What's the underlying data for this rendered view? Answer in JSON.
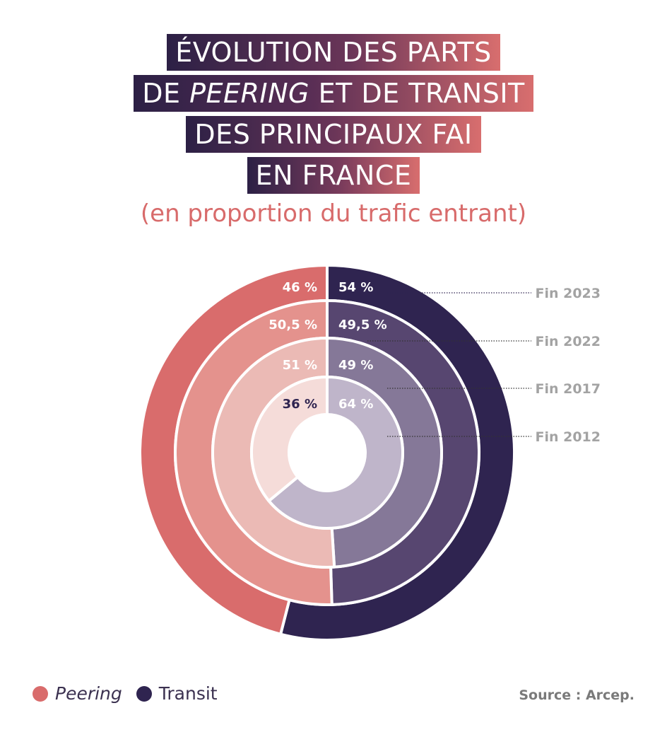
{
  "title": {
    "line1": "ÉVOLUTION DES PARTS",
    "line2_a": "DE ",
    "line2_b": "PEERING",
    "line2_c": " ET DE TRANSIT",
    "line3": "DES PRINCIPAUX FAI",
    "line4": "EN FRANCE"
  },
  "subtitle": "(en proportion du trafic entrant)",
  "legend": {
    "peering": "Peering",
    "transit": "Transit"
  },
  "source": "Source : Arcep.",
  "colors": {
    "peering": [
      "#d96c6c",
      "#e4928d",
      "#ebbab5",
      "#f5dcd9"
    ],
    "transit": [
      "#2f2450",
      "#574670",
      "#857898",
      "#bfb5ca"
    ],
    "label_dark": "#2f2450",
    "ring_label": "#a3a3a3"
  },
  "chart_data": {
    "type": "pie",
    "rings": [
      {
        "name": "Fin 2023",
        "peering": 46,
        "transit": 54,
        "peering_label": "46 %",
        "transit_label": "54 %"
      },
      {
        "name": "Fin 2022",
        "peering": 50.5,
        "transit": 49.5,
        "peering_label": "50,5 %",
        "transit_label": "49,5 %"
      },
      {
        "name": "Fin 2017",
        "peering": 51,
        "transit": 49,
        "peering_label": "51 %",
        "transit_label": "49 %"
      },
      {
        "name": "Fin 2012",
        "peering": 36,
        "transit": 64,
        "peering_label": "36 %",
        "transit_label": "64 %"
      }
    ],
    "series": [
      "Peering",
      "Transit"
    ]
  }
}
